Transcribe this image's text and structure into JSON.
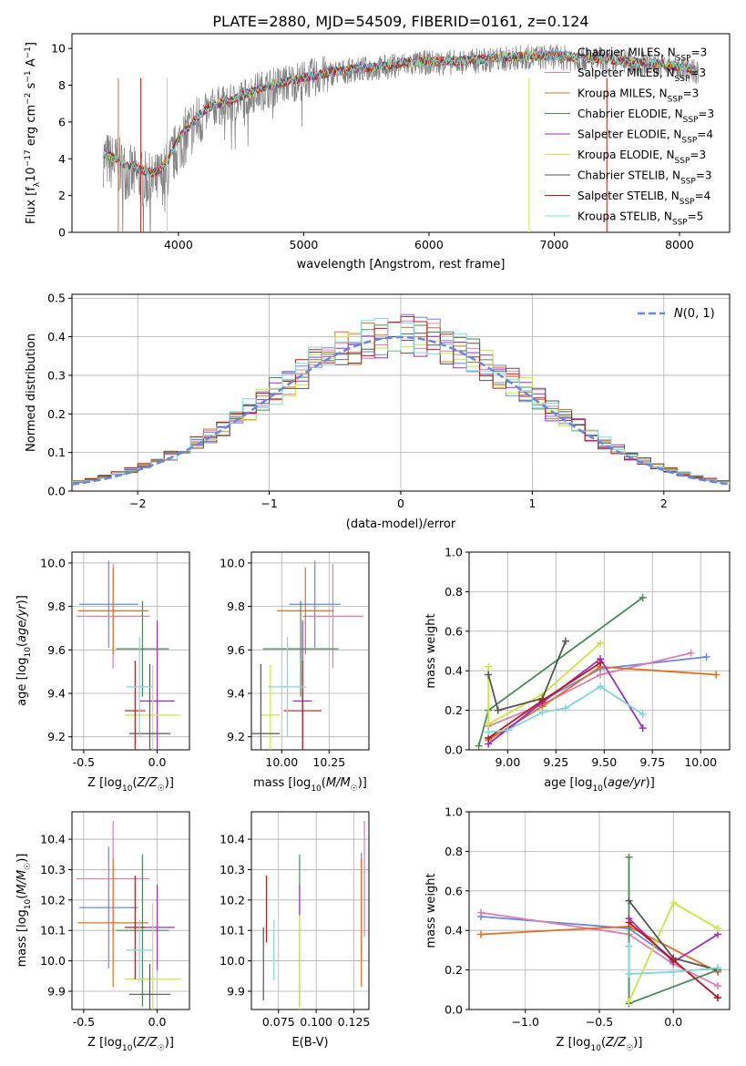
{
  "figure_title": "PLATE=2880, MJD=54509, FIBERID=0161, z=0.124",
  "models": [
    {
      "name": "Chabrier MILES",
      "nssp": "3",
      "color": "#6688dd"
    },
    {
      "name": "Salpeter MILES",
      "nssp": "3",
      "color": "#e07db0"
    },
    {
      "name": "Kroupa MILES",
      "nssp": "3",
      "color": "#e07020"
    },
    {
      "name": "Chabrier ELODIE",
      "nssp": "3",
      "color": "#4a8a5a"
    },
    {
      "name": "Salpeter ELODIE",
      "nssp": "4",
      "color": "#9b30c0"
    },
    {
      "name": "Kroupa ELODIE",
      "nssp": "3",
      "color": "#cce63c"
    },
    {
      "name": "Chabrier STELIB",
      "nssp": "3",
      "color": "#555555"
    },
    {
      "name": "Salpeter STELIB",
      "nssp": "4",
      "color": "#c01818"
    },
    {
      "name": "Kroupa STELIB",
      "nssp": "5",
      "color": "#7dd8dd"
    }
  ],
  "chart_data": [
    {
      "id": "spectrum",
      "type": "line",
      "xlabel": "wavelength [Angstrom, rest frame]",
      "ylabel": "Flux [f_λ 10^-17 erg cm^-2 s^-1 A^-1]",
      "xlim": [
        3150,
        8400
      ],
      "ylim": [
        0,
        10.8
      ],
      "xticks": [
        4000,
        5000,
        6000,
        7000,
        8000
      ],
      "yticks": [
        0,
        2,
        4,
        6,
        8,
        10
      ],
      "grid": false,
      "legend_position": "top-right",
      "observed": {
        "color": "#808080",
        "x": [
          3400,
          3500,
          3600,
          3700,
          3800,
          3900,
          4000,
          4100,
          4200,
          4300,
          4400,
          4600,
          4800,
          5000,
          5200,
          5400,
          5600,
          5800,
          6000,
          6200,
          6400,
          6600,
          6800,
          7000,
          7200,
          7400,
          7600,
          7800,
          8000,
          8150
        ],
        "y": [
          4.2,
          3.9,
          3.4,
          3.1,
          2.8,
          3.4,
          4.9,
          5.8,
          6.5,
          7.0,
          7.0,
          7.7,
          8.1,
          8.4,
          8.7,
          8.9,
          9.0,
          9.2,
          9.3,
          9.3,
          9.4,
          9.5,
          9.6,
          9.6,
          9.5,
          9.4,
          9.3,
          9.2,
          9.0,
          8.8
        ]
      },
      "model_continuum": {
        "x": [
          3400,
          3500,
          3600,
          3700,
          3800,
          3900,
          4000,
          4100,
          4200,
          4300,
          4400,
          4600,
          4800,
          5000,
          5200,
          5400,
          5600,
          5800,
          6000,
          6200,
          6400,
          6600,
          6800,
          7000,
          7200,
          7400,
          7600,
          7800,
          8000,
          8150
        ],
        "y": [
          4.3,
          4.0,
          3.6,
          3.4,
          3.2,
          3.7,
          5.1,
          5.9,
          6.6,
          7.0,
          7.1,
          7.7,
          8.1,
          8.4,
          8.7,
          8.9,
          9.0,
          9.2,
          9.3,
          9.3,
          9.4,
          9.5,
          9.6,
          9.6,
          9.5,
          9.4,
          9.3,
          9.2,
          9.0,
          8.8
        ]
      }
    },
    {
      "id": "residuals",
      "type": "histogram",
      "xlabel": "(data-model)/error",
      "ylabel": "Normed distribution",
      "xlim": [
        -2.5,
        2.5
      ],
      "ylim": [
        0,
        0.51
      ],
      "xticks": [
        -2,
        -1,
        0,
        1,
        2
      ],
      "yticks": [
        0.0,
        0.1,
        0.2,
        0.3,
        0.4,
        0.5
      ],
      "grid": true,
      "bin_width": 0.1,
      "reference_curve": {
        "label": "N(0,1)",
        "color": "#6688dd",
        "style": "dashed"
      },
      "legend_position": "top-right"
    },
    {
      "id": "age-vs-Z",
      "type": "errorbar",
      "xlabel": "Z [log10(Z/Z☉)]",
      "ylabel": "age [log10(age/yr)]",
      "xlim": [
        -0.58,
        0.22
      ],
      "ylim": [
        9.14,
        10.05
      ],
      "xticks": [
        -0.5,
        0.0
      ],
      "yticks": [
        9.2,
        9.4,
        9.6,
        9.8,
        10.0
      ],
      "grid": true,
      "points": [
        {
          "x": -0.33,
          "xerr": 0.2,
          "y": 9.81,
          "yerr": 0.2
        },
        {
          "x": -0.3,
          "xerr": 0.25,
          "y": 9.755,
          "yerr": 0.24
        },
        {
          "x": -0.3,
          "xerr": 0.24,
          "y": 9.78,
          "yerr": 0.2
        },
        {
          "x": -0.1,
          "xerr": 0.18,
          "y": 9.605,
          "yerr": 0.22
        },
        {
          "x": 0.0,
          "xerr": 0.12,
          "y": 9.365,
          "yerr": 0.37
        },
        {
          "x": -0.03,
          "xerr": 0.19,
          "y": 9.3,
          "yerr": 0.23
        },
        {
          "x": -0.05,
          "xerr": 0.14,
          "y": 9.215,
          "yerr": 0.32
        },
        {
          "x": -0.15,
          "xerr": 0.07,
          "y": 9.32,
          "yerr": 0.23
        },
        {
          "x": -0.12,
          "xerr": 0.09,
          "y": 9.43,
          "yerr": 0.23
        }
      ]
    },
    {
      "id": "age-vs-mass",
      "type": "errorbar",
      "xlabel": "mass [log10(M/M☉)]",
      "ylabel": "",
      "xlim": [
        9.84,
        10.46
      ],
      "ylim": [
        9.14,
        10.05
      ],
      "xticks": [
        10.0,
        10.25
      ],
      "yticks": [
        9.2,
        9.4,
        9.6,
        9.8,
        10.0
      ],
      "grid": true,
      "points": [
        {
          "x": 10.175,
          "xerr": 0.135,
          "y": 9.81,
          "yerr": 0.2
        },
        {
          "x": 10.27,
          "xerr": 0.16,
          "y": 9.755,
          "yerr": 0.24
        },
        {
          "x": 10.125,
          "xerr": 0.15,
          "y": 9.78,
          "yerr": 0.2
        },
        {
          "x": 10.1,
          "xerr": 0.2,
          "y": 9.605,
          "yerr": 0.22
        },
        {
          "x": 10.11,
          "xerr": 0.05,
          "y": 9.365,
          "yerr": 0.37
        },
        {
          "x": 9.94,
          "xerr": 0.05,
          "y": 9.3,
          "yerr": 0.23
        },
        {
          "x": 9.89,
          "xerr": 0.1,
          "y": 9.215,
          "yerr": 0.32
        },
        {
          "x": 10.11,
          "xerr": 0.1,
          "y": 9.32,
          "yerr": 0.23
        },
        {
          "x": 10.03,
          "xerr": 0.1,
          "y": 9.43,
          "yerr": 0.23
        }
      ]
    },
    {
      "id": "mass-weight-vs-age",
      "type": "line",
      "xlabel": "age [log10(age/yr)]",
      "ylabel": "mass weight",
      "xlim": [
        8.8,
        10.15
      ],
      "ylim": [
        0,
        1.0
      ],
      "xticks": [
        9.0,
        9.25,
        9.5,
        9.75,
        10.0
      ],
      "yticks": [
        0.0,
        0.2,
        0.4,
        0.6,
        0.8,
        1.0
      ],
      "grid": true,
      "series": [
        {
          "x": [
            8.9,
            9.0,
            9.18,
            9.48,
            10.03
          ],
          "y": [
            0.06,
            0.1,
            0.25,
            0.41,
            0.47
          ]
        },
        {
          "x": [
            8.9,
            9.18,
            9.48,
            9.95
          ],
          "y": [
            0.12,
            0.23,
            0.38,
            0.49
          ]
        },
        {
          "x": [
            8.9,
            9.18,
            9.48,
            10.08
          ],
          "y": [
            0.05,
            0.22,
            0.42,
            0.38
          ]
        },
        {
          "x": [
            8.85,
            8.9,
            9.7
          ],
          "y": [
            0.02,
            0.2,
            0.77
          ]
        },
        {
          "x": [
            8.9,
            9.18,
            9.48,
            9.7
          ],
          "y": [
            0.03,
            0.24,
            0.46,
            0.11
          ]
        },
        {
          "x": [
            8.9,
            8.9,
            9.18,
            9.48
          ],
          "y": [
            0.42,
            0.13,
            0.28,
            0.54
          ]
        },
        {
          "x": [
            8.9,
            8.95,
            9.18,
            9.3
          ],
          "y": [
            0.38,
            0.2,
            0.26,
            0.55
          ]
        },
        {
          "x": [
            8.9,
            9.18,
            9.48
          ],
          "y": [
            0.06,
            0.25,
            0.44
          ]
        },
        {
          "x": [
            8.9,
            9.0,
            9.18,
            9.3,
            9.48,
            9.7
          ],
          "y": [
            0.09,
            0.1,
            0.19,
            0.21,
            0.32,
            0.18
          ]
        }
      ]
    },
    {
      "id": "mass-vs-Z",
      "type": "errorbar",
      "xlabel": "Z [log10(Z/Z☉)]",
      "ylabel": "mass [log10(M/M☉)]",
      "xlim": [
        -0.58,
        0.22
      ],
      "ylim": [
        9.84,
        10.49
      ],
      "xticks": [
        -0.5,
        0.0
      ],
      "yticks": [
        9.9,
        10.0,
        10.1,
        10.2,
        10.3,
        10.4
      ],
      "grid": true,
      "points": [
        {
          "x": -0.33,
          "xerr": 0.2,
          "y": 10.175,
          "yerr": 0.2
        },
        {
          "x": -0.3,
          "xerr": 0.25,
          "y": 10.27,
          "yerr": 0.19
        },
        {
          "x": -0.3,
          "xerr": 0.24,
          "y": 10.125,
          "yerr": 0.21
        },
        {
          "x": -0.1,
          "xerr": 0.18,
          "y": 10.1,
          "yerr": 0.25
        },
        {
          "x": 0.0,
          "xerr": 0.12,
          "y": 10.11,
          "yerr": 0.14
        },
        {
          "x": -0.03,
          "xerr": 0.19,
          "y": 9.94,
          "yerr": 0.25
        },
        {
          "x": -0.05,
          "xerr": 0.14,
          "y": 9.89,
          "yerr": 0.1
        },
        {
          "x": -0.15,
          "xerr": 0.07,
          "y": 10.11,
          "yerr": 0.17
        },
        {
          "x": -0.12,
          "xerr": 0.09,
          "y": 10.035,
          "yerr": 0.1
        }
      ]
    },
    {
      "id": "mass-vs-ebv",
      "type": "errorbar",
      "xlabel": "E(B-V)",
      "ylabel": "",
      "xlim": [
        0.057,
        0.135
      ],
      "ylim": [
        9.84,
        10.49
      ],
      "xticks": [
        0.075,
        0.1,
        0.125
      ],
      "yticks": [
        9.9,
        10.0,
        10.1,
        10.2,
        10.3,
        10.4
      ],
      "grid": true,
      "points": [
        {
          "x": 0.13,
          "xerr": 0,
          "y": 10.175,
          "yerr": 0.18
        },
        {
          "x": 0.132,
          "xerr": 0,
          "y": 10.27,
          "yerr": 0.19
        },
        {
          "x": 0.13,
          "xerr": 0,
          "y": 10.125,
          "yerr": 0.21
        },
        {
          "x": 0.089,
          "xerr": 0,
          "y": 10.1,
          "yerr": 0.25
        },
        {
          "x": 0.089,
          "xerr": 0,
          "y": 10.2,
          "yerr": 0.05
        },
        {
          "x": 0.089,
          "xerr": 0,
          "y": 9.94,
          "yerr": 0.21
        },
        {
          "x": 0.065,
          "xerr": 0,
          "y": 9.99,
          "yerr": 0.12
        },
        {
          "x": 0.067,
          "xerr": 0,
          "y": 10.17,
          "yerr": 0.11
        },
        {
          "x": 0.072,
          "xerr": 0,
          "y": 10.035,
          "yerr": 0.1
        }
      ]
    },
    {
      "id": "mass-weight-vs-Z",
      "type": "line",
      "xlabel": "Z [log10(Z/Z☉)]",
      "ylabel": "mass weight",
      "xlim": [
        -1.38,
        0.38
      ],
      "ylim": [
        0,
        1.0
      ],
      "xticks": [
        -1.0,
        -0.5,
        0.0
      ],
      "yticks": [
        0.0,
        0.2,
        0.4,
        0.6,
        0.8,
        1.0
      ],
      "grid": true,
      "series": [
        {
          "x": [
            -1.3,
            -0.3,
            0.0,
            0.3
          ],
          "y": [
            0.47,
            0.41,
            0.25,
            0.06
          ]
        },
        {
          "x": [
            -1.3,
            -0.3,
            0.0,
            0.3
          ],
          "y": [
            0.49,
            0.38,
            0.23,
            0.12
          ]
        },
        {
          "x": [
            -1.3,
            -0.3,
            0.3
          ],
          "y": [
            0.38,
            0.42,
            0.19
          ]
        },
        {
          "x": [
            -0.3,
            -0.3,
            0.3
          ],
          "y": [
            0.77,
            0.03,
            0.2
          ]
        },
        {
          "x": [
            -0.3,
            0.0,
            0.3
          ],
          "y": [
            0.46,
            0.24,
            0.38
          ]
        },
        {
          "x": [
            -0.3,
            0.0,
            0.3
          ],
          "y": [
            0.04,
            0.54,
            0.41
          ]
        },
        {
          "x": [
            -0.3,
            0.0,
            0.3
          ],
          "y": [
            0.55,
            0.26,
            0.2
          ]
        },
        {
          "x": [
            -0.3,
            0.0,
            0.3
          ],
          "y": [
            0.44,
            0.25,
            0.06
          ]
        },
        {
          "x": [
            -0.3,
            -0.3,
            0.0,
            0.3
          ],
          "y": [
            0.32,
            0.18,
            0.19,
            0.21
          ]
        }
      ]
    }
  ]
}
